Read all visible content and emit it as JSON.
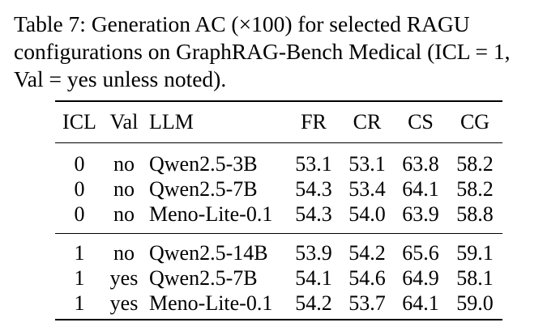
{
  "caption": {
    "line1": "Table 7:  Generation AC (×100) for selected RAGU",
    "line2": "configurations on GraphRAG-Bench Medical (ICL = 1,",
    "line3": "Val = yes unless noted)."
  },
  "table": {
    "headers": {
      "icl": "ICL",
      "val": "Val",
      "llm": "LLM",
      "fr": "FR",
      "cr": "CR",
      "cs": "CS",
      "cg": "CG"
    },
    "group1": [
      {
        "icl": "0",
        "val": "no",
        "llm": "Qwen2.5-3B",
        "fr": "53.1",
        "cr": "53.1",
        "cs": "63.8",
        "cg": "58.2"
      },
      {
        "icl": "0",
        "val": "no",
        "llm": "Qwen2.5-7B",
        "fr": "54.3",
        "cr": "53.4",
        "cs": "64.1",
        "cg": "58.2"
      },
      {
        "icl": "0",
        "val": "no",
        "llm": "Meno-Lite-0.1",
        "fr": "54.3",
        "cr": "54.0",
        "cs": "63.9",
        "cg": "58.8"
      }
    ],
    "group2": [
      {
        "icl": "1",
        "val": "no",
        "llm": "Qwen2.5-14B",
        "fr": "53.9",
        "cr": "54.2",
        "cs": "65.6",
        "cg": "59.1"
      },
      {
        "icl": "1",
        "val": "yes",
        "llm": "Qwen2.5-7B",
        "fr": "54.1",
        "cr": "54.6",
        "cs": "64.9",
        "cg": "58.1"
      },
      {
        "icl": "1",
        "val": "yes",
        "llm": "Meno-Lite-0.1",
        "fr": "54.2",
        "cr": "53.7",
        "cs": "64.1",
        "cg": "59.0"
      }
    ]
  }
}
